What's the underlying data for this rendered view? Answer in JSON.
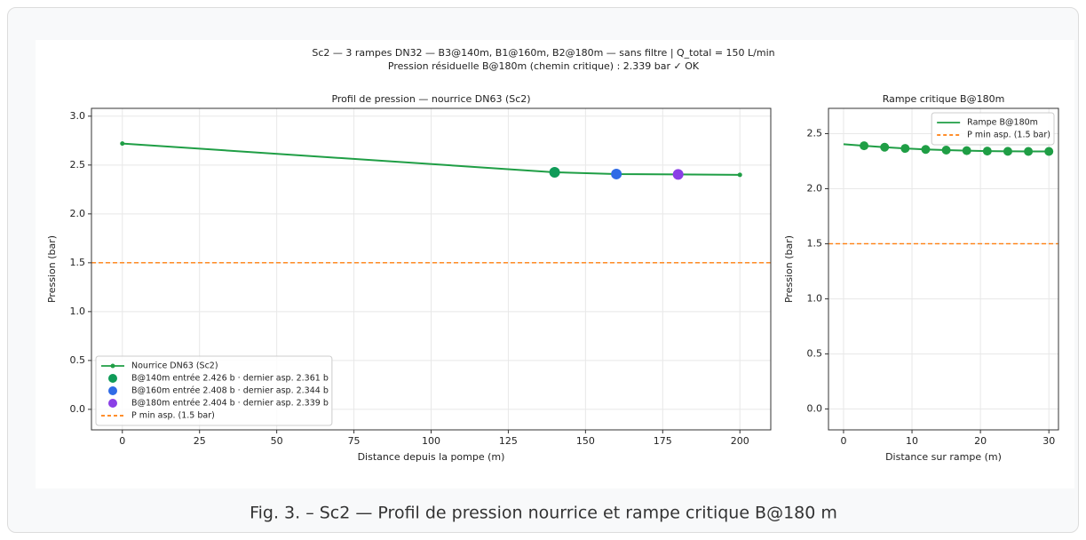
{
  "suptitle": [
    "Sc2 — 3 rampes DN32 — B3@140m, B1@160m, B2@180m — sans filtre  |  Q_total = 150 L/min",
    "Pression résiduelle B@180m (chemin critique) : 2.339 bar  ✓ OK"
  ],
  "caption": "Fig. 3. – Sc2 — Profil de pression nourrice et rampe critique B@180 m",
  "chart_data": [
    {
      "type": "line",
      "title": "Profil de pression — nourrice DN63 (Sc2)",
      "x_label": "Distance depuis la pompe (m)",
      "y_label": "Pression (bar)",
      "xlim": [
        -10,
        210
      ],
      "ylim": [
        -0.21,
        3.08
      ],
      "xticks": [
        0,
        25,
        50,
        75,
        100,
        125,
        150,
        175,
        200
      ],
      "yticks": [
        {
          "value": 0,
          "label": "0.0"
        },
        0.5,
        {
          "value": 1,
          "label": "1.0"
        },
        1.5,
        {
          "value": 2,
          "label": "2.0"
        },
        2.5,
        {
          "value": 3,
          "label": "3.0"
        }
      ],
      "grid": true,
      "legend": "lower left",
      "series": [
        {
          "name": "Nourrice DN63 (Sc2)",
          "kind": "line",
          "color": "#1f9e45",
          "marker_size": 2.5,
          "x": [
            0,
            140,
            160,
            180,
            200
          ],
          "values": [
            2.72,
            2.426,
            2.408,
            2.404,
            2.4
          ]
        },
        {
          "name": "B@140m  entrée 2.426 b · dernier asp. 2.361 b",
          "kind": "point",
          "color": "#0f9b58",
          "marker_size": 6,
          "x": [
            140
          ],
          "values": [
            2.426
          ]
        },
        {
          "name": "B@160m  entrée 2.408 b · dernier asp. 2.344 b",
          "kind": "point",
          "color": "#2f6be6",
          "marker_size": 6,
          "x": [
            160
          ],
          "values": [
            2.408
          ]
        },
        {
          "name": "B@180m  entrée 2.404 b · dernier asp. 2.339 b",
          "kind": "point",
          "color": "#8a3fe6",
          "marker_size": 6,
          "x": [
            180
          ],
          "values": [
            2.404
          ]
        },
        {
          "name": "P min asp. (1.5 bar)",
          "kind": "hline",
          "color": "#ff7f0e",
          "value": 1.5
        }
      ]
    },
    {
      "type": "line",
      "title": "Rampe critique B@180m",
      "x_label": "Distance sur rampe (m)",
      "y_label": "Pression (bar)",
      "xlim": [
        -2.2,
        31.4
      ],
      "ylim": [
        -0.19,
        2.73
      ],
      "xticks": [
        0,
        10,
        20,
        30
      ],
      "yticks": [
        {
          "value": 0,
          "label": "0.0"
        },
        0.5,
        {
          "value": 1,
          "label": "1.0"
        },
        1.5,
        {
          "value": 2,
          "label": "2.0"
        },
        2.5
      ],
      "grid": true,
      "legend": "upper right",
      "series": [
        {
          "name": "Rampe B@180m",
          "kind": "line",
          "color": "#1f9e45",
          "marker_size": 0,
          "x": [
            0,
            3,
            6,
            9,
            12,
            15,
            18,
            21,
            24,
            27,
            30
          ],
          "values": [
            2.404,
            2.39,
            2.377,
            2.366,
            2.357,
            2.351,
            2.346,
            2.342,
            2.34,
            2.339,
            2.339
          ]
        },
        {
          "kind": "point",
          "color": "#1f9e45",
          "marker_size": 5,
          "x": [
            3,
            6,
            9,
            12,
            15,
            18,
            21,
            24,
            27,
            30
          ],
          "values": [
            2.39,
            2.377,
            2.366,
            2.357,
            2.351,
            2.346,
            2.342,
            2.34,
            2.339,
            2.339
          ]
        },
        {
          "name": "P min asp. (1.5 bar)",
          "kind": "hline",
          "color": "#ff7f0e",
          "value": 1.5
        }
      ]
    }
  ]
}
